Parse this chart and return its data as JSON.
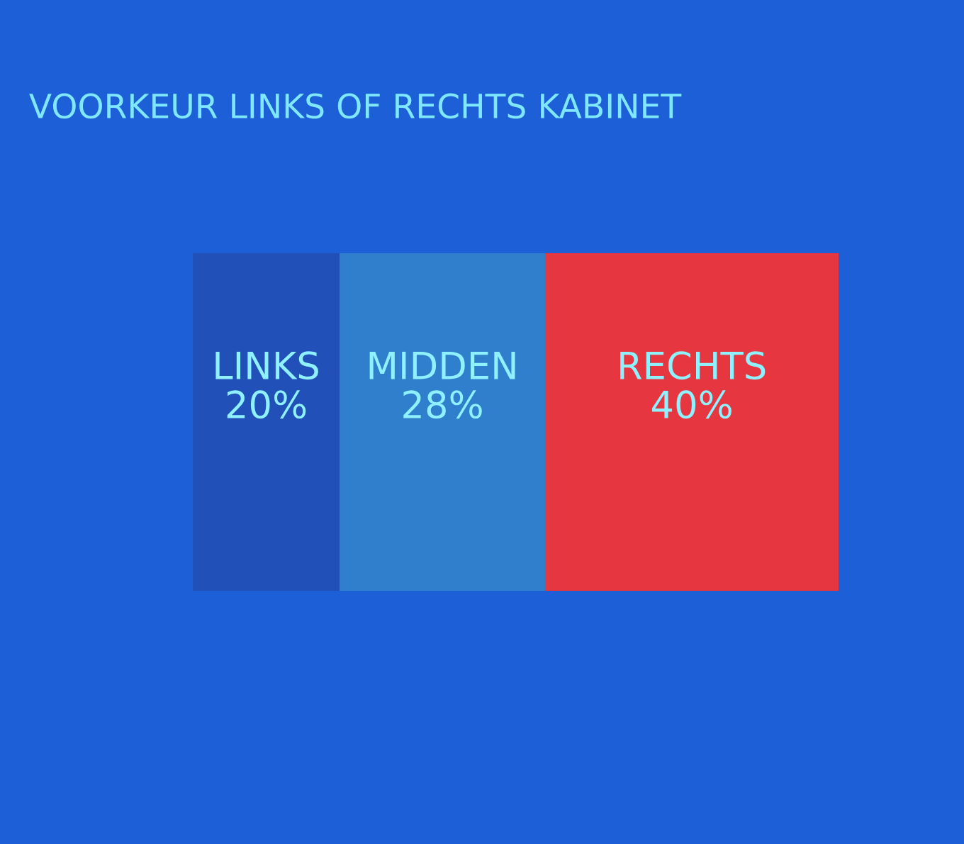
{
  "chart_data": {
    "type": "bar",
    "title": "VOORKEUR LINKS OF RECHTS KABINET",
    "orientation": "horizontal",
    "stacked": true,
    "categories": [
      null
    ],
    "series": [
      {
        "name": "LINKS",
        "color": "#2150b8",
        "values": [
          20
        ],
        "value_labels": [
          "20%"
        ]
      },
      {
        "name": "MIDDEN",
        "color": "#2f7fcc",
        "values": [
          28
        ],
        "value_labels": [
          "28%"
        ]
      },
      {
        "name": "RECHTS",
        "color": "#e63640",
        "values": [
          40
        ],
        "value_labels": [
          "40%"
        ]
      }
    ]
  }
}
